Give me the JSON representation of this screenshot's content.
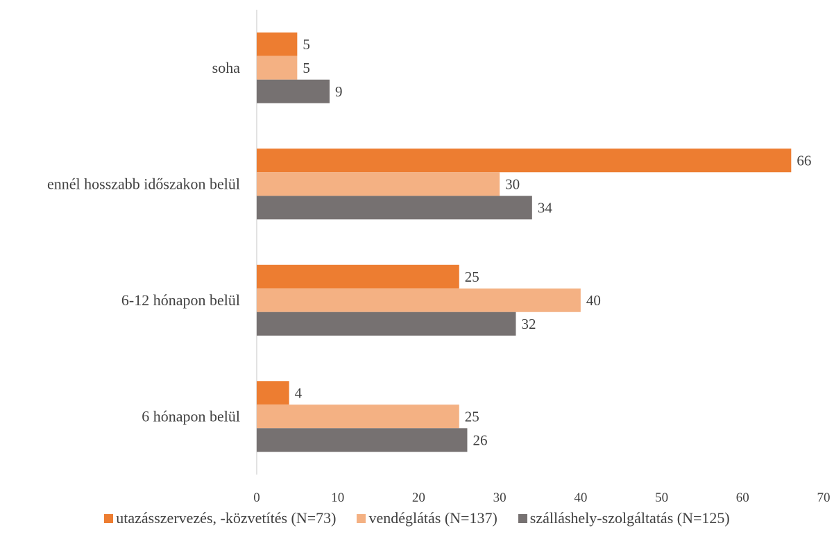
{
  "chart_data": {
    "type": "bar",
    "orientation": "horizontal",
    "categories": [
      "6 hónapon belül",
      "6-12 hónapon belül",
      "ennél hosszabb időszakon belül",
      "soha"
    ],
    "series": [
      {
        "name": "utazásszervezés, -közvetítés (N=73)",
        "color": "#ED7D31",
        "values": [
          4,
          25,
          66,
          5
        ]
      },
      {
        "name": "vendéglátás (N=137)",
        "color": "#F4B183",
        "values": [
          25,
          40,
          30,
          5
        ]
      },
      {
        "name": "szálláshely-szolgáltatás (N=125)",
        "color": "#767171",
        "values": [
          26,
          32,
          34,
          9
        ]
      }
    ],
    "xlim": [
      0,
      70
    ],
    "xticks": [
      0,
      10,
      20,
      30,
      40,
      50,
      60,
      70
    ],
    "grid": false,
    "legend_position": "bottom",
    "data_labels": true
  }
}
